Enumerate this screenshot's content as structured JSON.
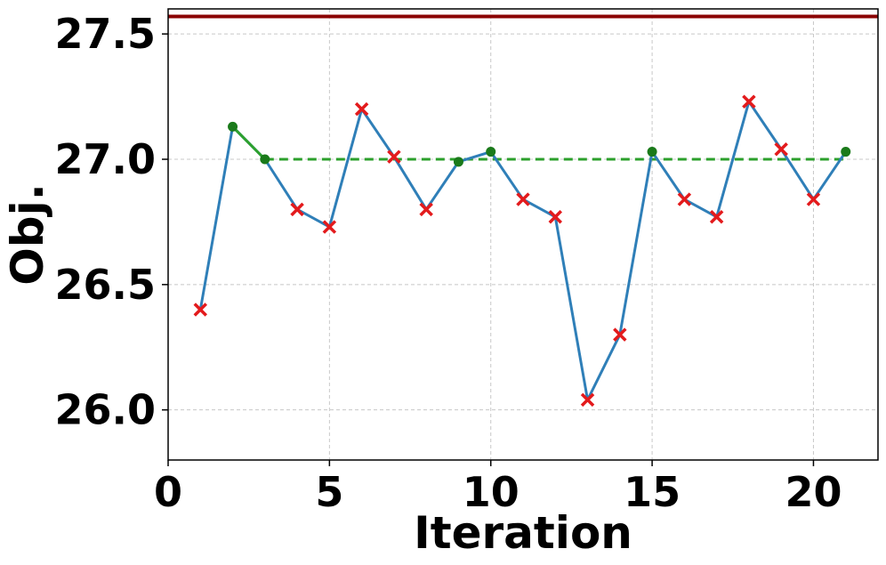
{
  "chart_data": {
    "type": "line",
    "title": "",
    "xlabel": "Iteration",
    "ylabel": "Obj.",
    "xlim": [
      0,
      22
    ],
    "ylim": [
      25.8,
      27.6
    ],
    "xticks": [
      0,
      5,
      10,
      15,
      20
    ],
    "yticks": [
      26.0,
      26.5,
      27.0,
      27.5
    ],
    "ytick_labels": [
      "26.0",
      "26.5",
      "27.0",
      "27.5"
    ],
    "grid": true,
    "x": [
      1,
      2,
      3,
      4,
      5,
      6,
      7,
      8,
      9,
      10,
      11,
      12,
      13,
      14,
      15,
      16,
      17,
      18,
      19,
      20,
      21
    ],
    "values": [
      26.4,
      27.13,
      27.0,
      26.8,
      26.73,
      27.2,
      27.01,
      26.8,
      26.99,
      27.03,
      26.84,
      26.77,
      26.04,
      26.3,
      27.03,
      26.84,
      26.77,
      27.23,
      27.04,
      26.84,
      27.03
    ],
    "accepted": [
      false,
      true,
      true,
      false,
      false,
      false,
      false,
      false,
      true,
      true,
      false,
      false,
      false,
      false,
      true,
      false,
      false,
      false,
      false,
      false,
      true
    ],
    "green_segment": {
      "x": [
        2,
        3
      ],
      "y": [
        27.13,
        27.0
      ]
    },
    "dashed_baseline": {
      "y": 27.0,
      "x_from": 3,
      "x_to": 21
    },
    "upper_reference": {
      "y": 27.57
    },
    "colors": {
      "line": "#2f7fb8",
      "accepted_marker": "#1a7a1a",
      "rejected_marker": "#e31a1c",
      "baseline": "#2ca02c",
      "reference": "#8b0000",
      "grid": "#c8c8c8"
    }
  }
}
